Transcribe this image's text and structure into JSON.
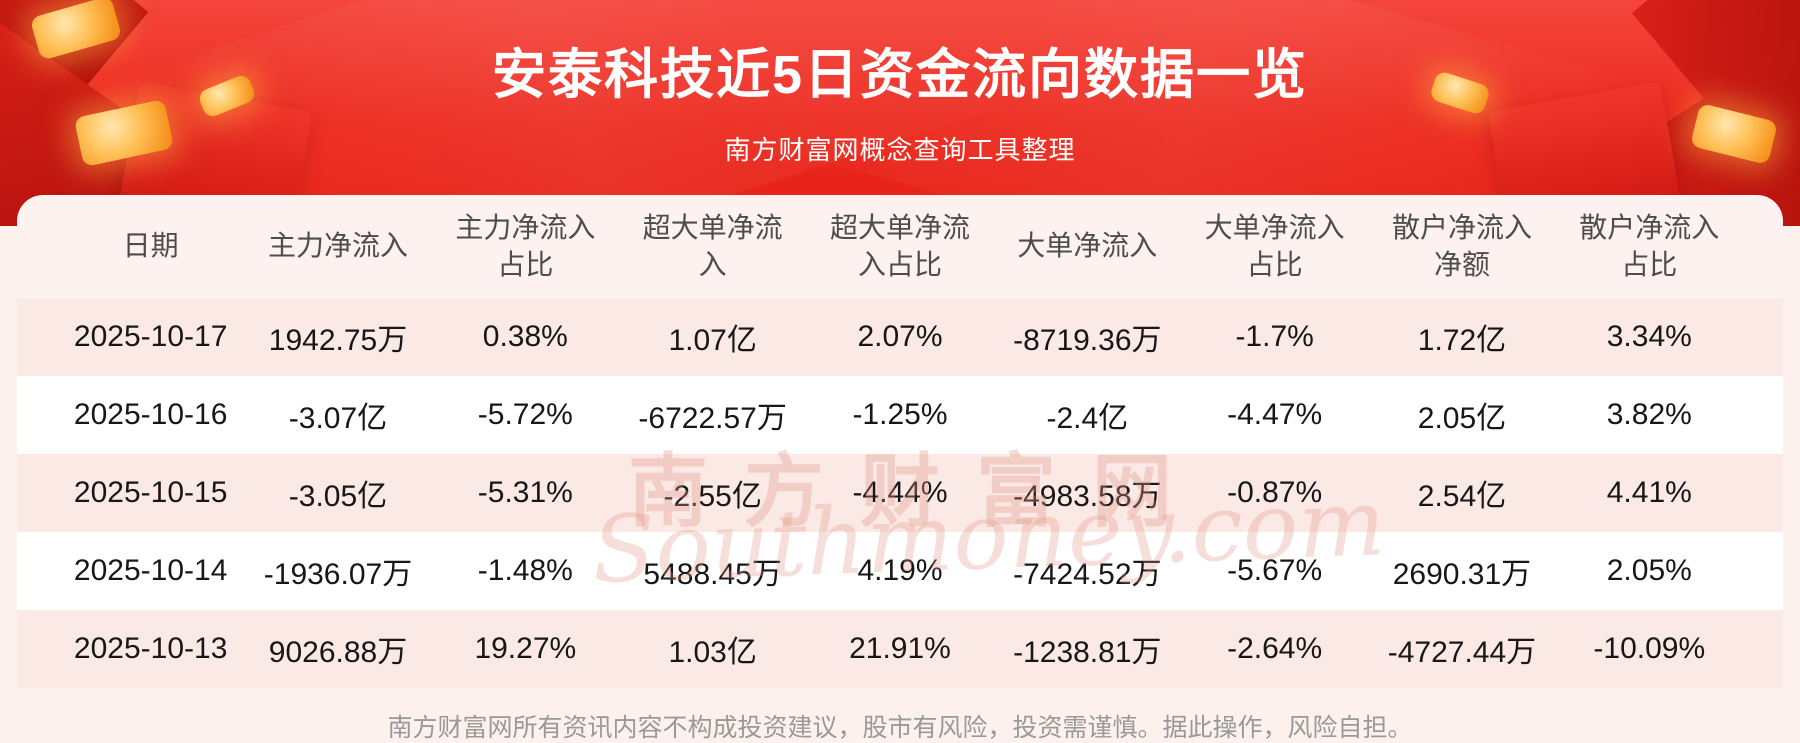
{
  "header": {
    "title": "安泰科技近5日资金流向数据一览",
    "subtitle": "南方财富网概念查询工具整理"
  },
  "chart_data": {
    "type": "table",
    "title": "安泰科技近5日资金流向数据一览",
    "columns": [
      "日期",
      "主力净流入",
      "主力净流入占比",
      "超大单净流入",
      "超大单净流入占比",
      "大单净流入",
      "大单净流入占比",
      "散户净流入净额",
      "散户净流入占比"
    ],
    "rows": [
      [
        "2025-10-17",
        "1942.75万",
        "0.38%",
        "1.07亿",
        "2.07%",
        "-8719.36万",
        "-1.7%",
        "1.72亿",
        "3.34%"
      ],
      [
        "2025-10-16",
        "-3.07亿",
        "-5.72%",
        "-6722.57万",
        "-1.25%",
        "-2.4亿",
        "-4.47%",
        "2.05亿",
        "3.82%"
      ],
      [
        "2025-10-15",
        "-3.05亿",
        "-5.31%",
        "-2.55亿",
        "-4.44%",
        "-4983.58万",
        "-0.87%",
        "2.54亿",
        "4.41%"
      ],
      [
        "2025-10-14",
        "-1936.07万",
        "-1.48%",
        "5488.45万",
        "4.19%",
        "-7424.52万",
        "-5.67%",
        "2690.31万",
        "2.05%"
      ],
      [
        "2025-10-13",
        "9026.88万",
        "19.27%",
        "1.03亿",
        "21.91%",
        "-1238.81万",
        "-2.64%",
        "-4727.44万",
        "-10.09%"
      ]
    ]
  },
  "watermark": {
    "line1": "南方财富网",
    "line2": "Southmoney.com"
  },
  "footer": {
    "disclaimer": "南方财富网所有资讯内容不构成投资建议，股市有风险，投资需谨慎。据此操作，风险自担。"
  },
  "colors": {
    "banner_red": "#ec2a1f",
    "dark_red_fold": "#a90e09",
    "gold": "#ffbf54",
    "page_bg": "#fdf1ee",
    "row_pink": "#fbe9e6",
    "row_white": "#ffffff",
    "text_dark": "#171717",
    "header_text": "#4d4d4d",
    "footer_gray": "#999999",
    "watermark_pink": "#e29683"
  }
}
